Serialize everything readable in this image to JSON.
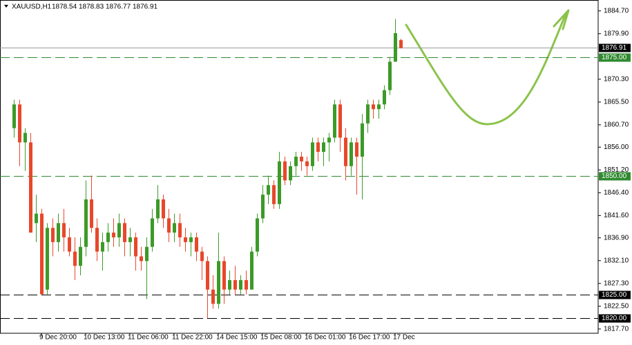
{
  "chart_data": {
    "type": "candlestick",
    "title": "XAUUSD,H1",
    "open": [
      1860,
      1865,
      1857,
      1857,
      1840,
      1842,
      1826,
      1839,
      1836,
      1840,
      1837,
      1834,
      1831,
      1835,
      1845,
      1839,
      1834,
      1836,
      1838,
      1837,
      1840,
      1836,
      1837,
      1833,
      1832,
      1835,
      1841,
      1845,
      1841,
      1838,
      1840,
      1837,
      1836,
      1837,
      1834,
      1832,
      1826,
      1823,
      1832,
      1826,
      1828,
      1826,
      1828,
      1826,
      1834,
      1841,
      1846,
      1848,
      1844,
      1853,
      1849,
      1852,
      1854,
      1853,
      1852,
      1857,
      1855,
      1857,
      1858,
      1865,
      1858,
      1852,
      1857,
      1854,
      1861,
      1865,
      1864,
      1865,
      1868,
      1874,
      1878.54
    ],
    "high": [
      1866,
      1866,
      1860,
      1859,
      1846,
      1843,
      1840,
      1841,
      1842,
      1843,
      1839,
      1837,
      1837,
      1849,
      1850,
      1841,
      1838,
      1840,
      1841,
      1842,
      1841,
      1839,
      1838,
      1835,
      1837,
      1843,
      1848,
      1846,
      1843,
      1842,
      1842,
      1839,
      1838,
      1838,
      1835,
      1833,
      1829,
      1838,
      1833,
      1830,
      1831,
      1829,
      1830,
      1835,
      1842,
      1848,
      1850,
      1849,
      1855,
      1854,
      1853,
      1855,
      1855,
      1854,
      1858,
      1858,
      1858,
      1859,
      1866,
      1866,
      1860,
      1858,
      1858,
      1863,
      1866,
      1866,
      1866,
      1869,
      1875,
      1883,
      1878.83
    ],
    "low": [
      1858,
      1852,
      1851,
      1838,
      1836,
      1825,
      1825,
      1833,
      1834,
      1834,
      1833,
      1828,
      1829,
      1833,
      1838,
      1832,
      1830,
      1834,
      1835,
      1835,
      1833,
      1833,
      1830,
      1830,
      1824,
      1834,
      1840,
      1839,
      1836,
      1836,
      1835,
      1834,
      1833,
      1832,
      1828,
      1820,
      1822,
      1822,
      1823,
      1825,
      1825,
      1825,
      1825,
      1826,
      1833,
      1840,
      1844,
      1843,
      1843,
      1848,
      1848,
      1850,
      1851,
      1850,
      1851,
      1853,
      1852,
      1853,
      1857,
      1855,
      1849,
      1850,
      1846,
      1845,
      1859,
      1862,
      1862,
      1864,
      1867,
      1874,
      1876.77
    ],
    "close": [
      1865,
      1857,
      1859,
      1838,
      1842,
      1825,
      1839,
      1836,
      1840,
      1837,
      1834,
      1831,
      1835,
      1845,
      1839,
      1834,
      1836,
      1838,
      1837,
      1840,
      1836,
      1837,
      1833,
      1832,
      1835,
      1841,
      1845,
      1841,
      1838,
      1840,
      1837,
      1836,
      1837,
      1834,
      1832,
      1826,
      1823,
      1832,
      1826,
      1828,
      1826,
      1828,
      1826,
      1834,
      1841,
      1846,
      1848,
      1844,
      1853,
      1849,
      1852,
      1854,
      1853,
      1852,
      1857,
      1855,
      1857,
      1858,
      1865,
      1858,
      1852,
      1857,
      1854,
      1861,
      1865,
      1864,
      1865,
      1868,
      1874,
      1880,
      1876.91
    ],
    "up_color": "#3c9a28",
    "down_color": "#e8472b",
    "xlim": [
      -2.5,
      105.75
    ],
    "ylim": [
      1816.8,
      1886.7
    ],
    "xticks": [
      {
        "value": 5,
        "label": "9 Dec 20:00"
      },
      {
        "value": 13,
        "label": "10 Dec 13:00"
      },
      {
        "value": 21,
        "label": "11 Dec 06:00"
      },
      {
        "value": 29,
        "label": "11 Dec 22:00"
      },
      {
        "value": 37,
        "label": "14 Dec 15:00"
      },
      {
        "value": 45,
        "label": "15 Dec 08:00"
      },
      {
        "value": 53,
        "label": "16 Dec 01:00"
      },
      {
        "value": 61,
        "label": "16 Dec 17:00"
      },
      {
        "value": 69,
        "label": "17 Dec"
      }
    ],
    "yticks": [
      {
        "value": 1884.7,
        "label": "1884.70"
      },
      {
        "value": 1879.9,
        "label": "1879.90"
      },
      {
        "value": 1870.3,
        "label": "1870.30"
      },
      {
        "value": 1865.5,
        "label": "1865.50"
      },
      {
        "value": 1860.7,
        "label": "1860.70"
      },
      {
        "value": 1856,
        "label": "1856.00"
      },
      {
        "value": 1851.2,
        "label": "1851.20"
      },
      {
        "value": 1846.4,
        "label": "1846.40"
      },
      {
        "value": 1841.6,
        "label": "1841.60"
      },
      {
        "value": 1836.9,
        "label": "1836.90"
      },
      {
        "value": 1832.1,
        "label": "1832.10"
      },
      {
        "value": 1827.3,
        "label": "1827.30"
      },
      {
        "value": 1822.5,
        "label": "1822.50"
      },
      {
        "value": 1817.7,
        "label": "1817.70"
      }
    ],
    "levels": [
      {
        "value": 1875,
        "label": "1875.00",
        "color": "#2f8a2f"
      },
      {
        "value": 1850,
        "label": "1850.00",
        "color": "#2f8a2f"
      },
      {
        "value": 1825,
        "label": "1825.00",
        "color": "#000000"
      },
      {
        "value": 1820,
        "label": "1820.00",
        "color": "#000000"
      }
    ]
  }
}
